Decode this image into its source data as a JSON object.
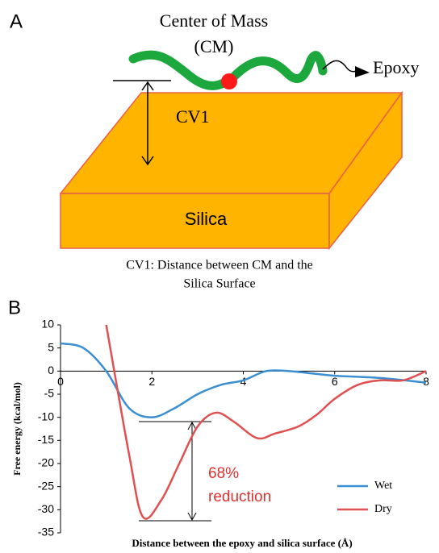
{
  "panel_a": {
    "label": "A",
    "cm_title": "Center of Mass",
    "cm_abbr": "(CM)",
    "epoxy": "Epoxy",
    "cv": "CV1",
    "slab": "Silica",
    "caption_line1": "CV1: Distance between CM and the",
    "caption_line2": "Silica Surface"
  },
  "chart_data": {
    "type": "line",
    "panel_label": "B",
    "xlabel": "Distance between the epoxy and silica surface (Å)",
    "ylabel": "Free energy (kcal/mol)",
    "annotation_line1": "68%",
    "annotation_line2": "reduction",
    "xlim": [
      0,
      8
    ],
    "xticks": [
      0,
      2,
      4,
      6,
      8
    ],
    "ylim": [
      -35,
      10
    ],
    "yticks": [
      10,
      5,
      0,
      -5,
      -10,
      -15,
      -20,
      -25,
      -30,
      -35
    ],
    "legend": "lower right",
    "series": [
      {
        "name": "Wet",
        "color": "#3b8fd0",
        "x": [
          0,
          0.5,
          1,
          1.5,
          2,
          2.5,
          3,
          3.5,
          4,
          4.5,
          5,
          5.5,
          6,
          7,
          8
        ],
        "values": [
          6,
          5,
          0,
          -8,
          -10,
          -8,
          -5,
          -3,
          -2,
          0,
          0,
          -0.5,
          -1,
          -1.5,
          -2.5
        ]
      },
      {
        "name": "Dry",
        "color": "#e05050",
        "x": [
          1,
          1.5,
          1.8,
          2.2,
          2.6,
          3,
          3.4,
          3.8,
          4.3,
          4.7,
          5.2,
          5.6,
          6,
          6.5,
          7,
          7.5,
          8
        ],
        "values": [
          10,
          -18,
          -31.5,
          -28,
          -20,
          -12,
          -9,
          -11,
          -14.5,
          -13.5,
          -12,
          -9.5,
          -6,
          -3,
          -2,
          -2,
          0
        ]
      }
    ]
  }
}
